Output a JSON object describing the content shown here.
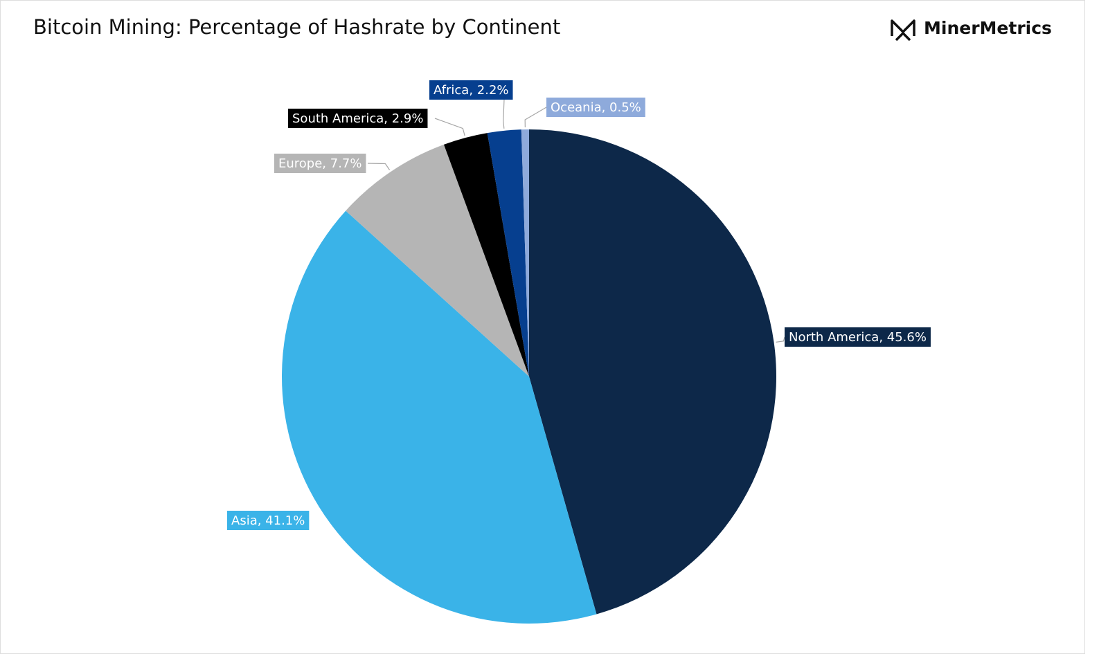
{
  "chart_data": {
    "type": "pie",
    "title": "Bitcoin Mining: Percentage of Hashrate by Continent",
    "logo": "MinerMetrics",
    "categories": [
      "North America",
      "Asia",
      "Europe",
      "South America",
      "Africa",
      "Oceania"
    ],
    "values": [
      45.6,
      41.1,
      7.7,
      2.9,
      2.2,
      0.5
    ],
    "value_labels": [
      "North America, 45.6%",
      "Asia, 41.1%",
      "Europe, 7.7%",
      "South America, 2.9%",
      "Africa, 2.2%",
      "Oceania, 0.5%"
    ],
    "colors": [
      "#0d2849",
      "#3ab3e8",
      "#b5b5b5",
      "#000000",
      "#063f8f",
      "#8eaadb"
    ]
  }
}
